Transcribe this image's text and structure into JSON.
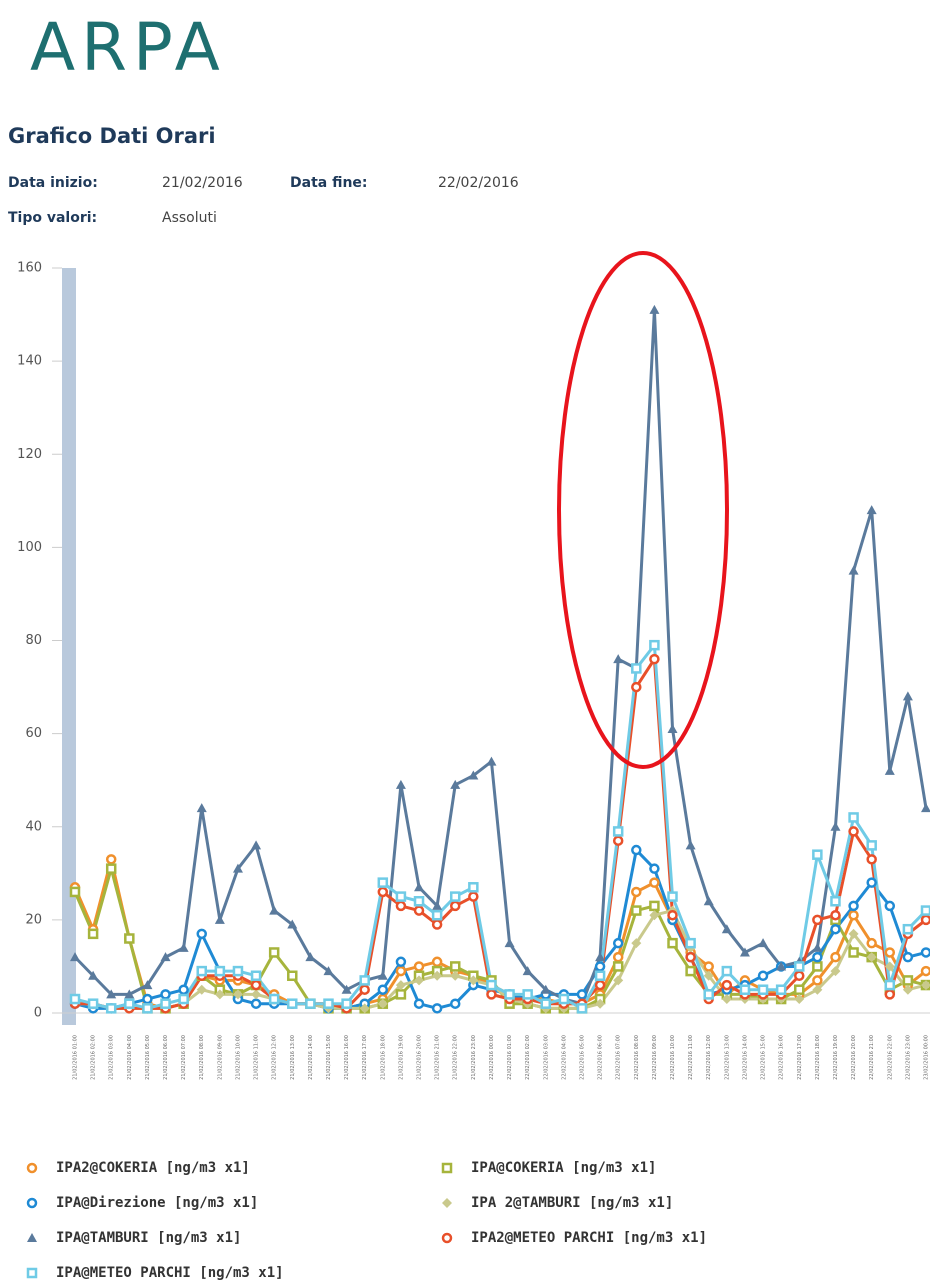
{
  "header": {
    "logo": "ARPA",
    "title": "Grafico Dati Orari",
    "start_label": "Data inizio:",
    "start_value": "21/02/2016",
    "end_label": "Data fine:",
    "end_value": "22/02/2016",
    "type_label": "Tipo valori:",
    "type_value": "Assoluti"
  },
  "chart_data": {
    "type": "line",
    "categories": [
      "21/02/2016 01:00",
      "21/02/2016 02:00",
      "21/02/2016 03:00",
      "21/02/2016 04:00",
      "21/02/2016 05:00",
      "21/02/2016 06:00",
      "21/02/2016 07:00",
      "21/02/2016 08:00",
      "21/02/2016 09:00",
      "21/02/2016 10:00",
      "21/02/2016 11:00",
      "21/02/2016 12:00",
      "21/02/2016 13:00",
      "21/02/2016 14:00",
      "21/02/2016 15:00",
      "21/02/2016 16:00",
      "21/02/2016 17:00",
      "21/02/2016 18:00",
      "21/02/2016 19:00",
      "21/02/2016 20:00",
      "21/02/2016 21:00",
      "21/02/2016 22:00",
      "21/02/2016 23:00",
      "22/02/2016 00:00",
      "22/02/2016 01:00",
      "22/02/2016 02:00",
      "22/02/2016 03:00",
      "22/02/2016 04:00",
      "22/02/2016 05:00",
      "22/02/2016 06:00",
      "22/02/2016 07:00",
      "22/02/2016 08:00",
      "22/02/2016 09:00",
      "22/02/2016 10:00",
      "22/02/2016 11:00",
      "22/02/2016 12:00",
      "22/02/2016 13:00",
      "22/02/2016 14:00",
      "22/02/2016 15:00",
      "22/02/2016 16:00",
      "22/02/2016 17:00",
      "22/02/2016 18:00",
      "22/02/2016 19:00",
      "22/02/2016 20:00",
      "22/02/2016 21:00",
      "22/02/2016 22:00",
      "22/02/2016 23:00",
      "23/02/2016 00:00"
    ],
    "series": [
      {
        "name": "IPA2@COKERIA [ng/m3 x1]",
        "color": "#f0902c",
        "marker": "circle",
        "values": [
          27,
          18,
          33,
          16,
          2,
          1,
          2,
          8,
          7,
          7,
          6,
          4,
          2,
          2,
          2,
          1,
          2,
          3,
          9,
          10,
          11,
          9,
          8,
          6,
          4,
          3,
          3,
          2,
          2,
          4,
          12,
          26,
          28,
          20,
          13,
          10,
          4,
          7,
          5,
          4,
          4,
          7,
          12,
          21,
          15,
          13,
          6,
          9
        ]
      },
      {
        "name": "IPA@COKERIA [ng/m3 x1]",
        "color": "#a6b43c",
        "marker": "square",
        "values": [
          26,
          17,
          31,
          16,
          1,
          1,
          2,
          8,
          5,
          4,
          6,
          13,
          8,
          2,
          1,
          1,
          1,
          2,
          4,
          8,
          9,
          10,
          8,
          7,
          2,
          2,
          1,
          1,
          1,
          3,
          10,
          22,
          23,
          15,
          9,
          4,
          4,
          4,
          3,
          3,
          5,
          10,
          20,
          13,
          12,
          5,
          7,
          6
        ]
      },
      {
        "name": "IPA@Direzione [ng/m3 x1]",
        "color": "#1f8ad4",
        "marker": "circle",
        "values": [
          2,
          1,
          1,
          2,
          3,
          4,
          5,
          17,
          9,
          3,
          2,
          2,
          2,
          2,
          1,
          1,
          2,
          5,
          11,
          2,
          1,
          2,
          6,
          5,
          4,
          3,
          4,
          4,
          4,
          10,
          15,
          35,
          31,
          20,
          12,
          4,
          5,
          6,
          8,
          10,
          10,
          12,
          18,
          23,
          28,
          23,
          12,
          13
        ]
      },
      {
        "name": "IPA 2@TAMBURI [ng/m3 x1]",
        "color": "#c9c98c",
        "marker": "diamond",
        "values": [
          2,
          2,
          1,
          1,
          1,
          1,
          2,
          5,
          4,
          4,
          4,
          3,
          2,
          2,
          1,
          1,
          1,
          2,
          6,
          7,
          8,
          8,
          7,
          6,
          3,
          2,
          1,
          1,
          1,
          2,
          7,
          15,
          21,
          22,
          14,
          8,
          3,
          3,
          3,
          3,
          3,
          5,
          9,
          17,
          12,
          10,
          5,
          6
        ]
      },
      {
        "name": "IPA@TAMBURI [ng/m3 x1]",
        "color": "#5a7a9c",
        "marker": "triangle",
        "values": [
          12,
          8,
          4,
          4,
          6,
          12,
          14,
          44,
          20,
          31,
          36,
          22,
          19,
          12,
          9,
          5,
          7,
          8,
          49,
          27,
          23,
          49,
          51,
          54,
          15,
          9,
          5,
          3,
          2,
          12,
          76,
          74,
          151,
          61,
          36,
          24,
          18,
          13,
          15,
          10,
          11,
          14,
          40,
          95,
          108,
          52,
          68,
          44
        ]
      },
      {
        "name": "IPA2@METEO PARCHI [ng/m3 x1]",
        "color": "#e8502a",
        "marker": "circle",
        "values": [
          2,
          2,
          1,
          1,
          1,
          1,
          2,
          8,
          8,
          8,
          6,
          3,
          2,
          2,
          2,
          1,
          5,
          26,
          23,
          22,
          19,
          23,
          25,
          4,
          3,
          3,
          2,
          2,
          2,
          6,
          37,
          70,
          76,
          21,
          12,
          3,
          6,
          4,
          4,
          4,
          8,
          20,
          21,
          39,
          33,
          4,
          17,
          20
        ]
      },
      {
        "name": "IPA@METEO PARCHI [ng/m3 x1]",
        "color": "#6fcbe6",
        "marker": "square",
        "values": [
          3,
          2,
          1,
          2,
          1,
          2,
          3,
          9,
          9,
          9,
          8,
          3,
          2,
          2,
          2,
          2,
          7,
          28,
          25,
          24,
          21,
          25,
          27,
          6,
          4,
          4,
          2,
          3,
          1,
          8,
          39,
          74,
          79,
          25,
          15,
          4,
          9,
          5,
          5,
          5,
          10,
          34,
          24,
          42,
          36,
          6,
          18,
          22
        ]
      }
    ],
    "ylim": [
      0,
      160
    ],
    "yticks": [
      0,
      20,
      40,
      60,
      80,
      100,
      120,
      140,
      160
    ],
    "grid": false
  }
}
